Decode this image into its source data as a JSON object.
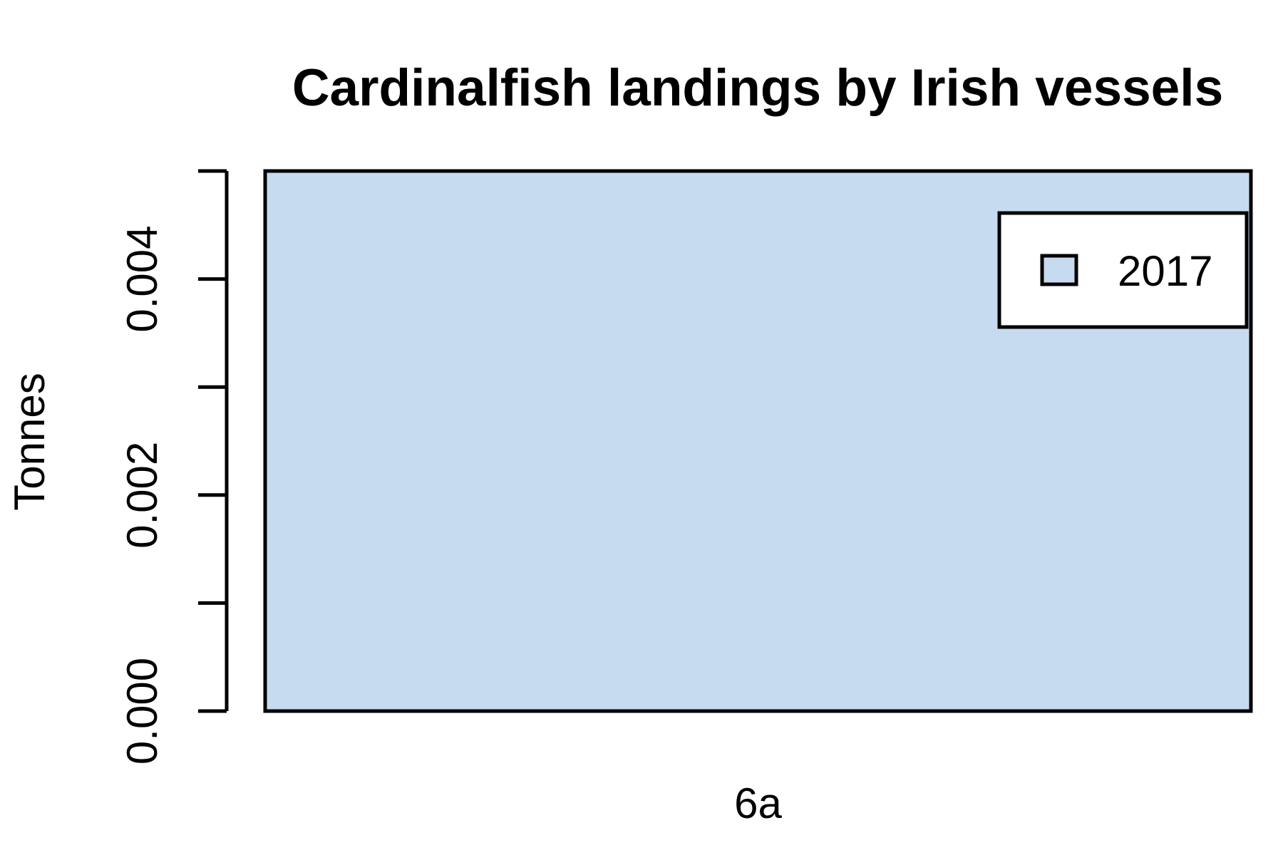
{
  "chart_data": {
    "type": "bar",
    "title": "Cardinalfish landings by Irish vessels",
    "xlabel": "",
    "ylabel": "Tonnes",
    "categories": [
      "6a"
    ],
    "series": [
      {
        "name": "2017",
        "values": [
          0.005
        ],
        "color": "#c6dbef"
      }
    ],
    "ylim": [
      0,
      0.005
    ],
    "yticks": [
      0,
      0.001,
      0.002,
      0.003,
      0.004,
      0.005
    ],
    "ytick_labels": [
      "0.000",
      "",
      "0.002",
      "",
      "0.004",
      ""
    ],
    "grid": false,
    "legend_position": "top-right"
  }
}
